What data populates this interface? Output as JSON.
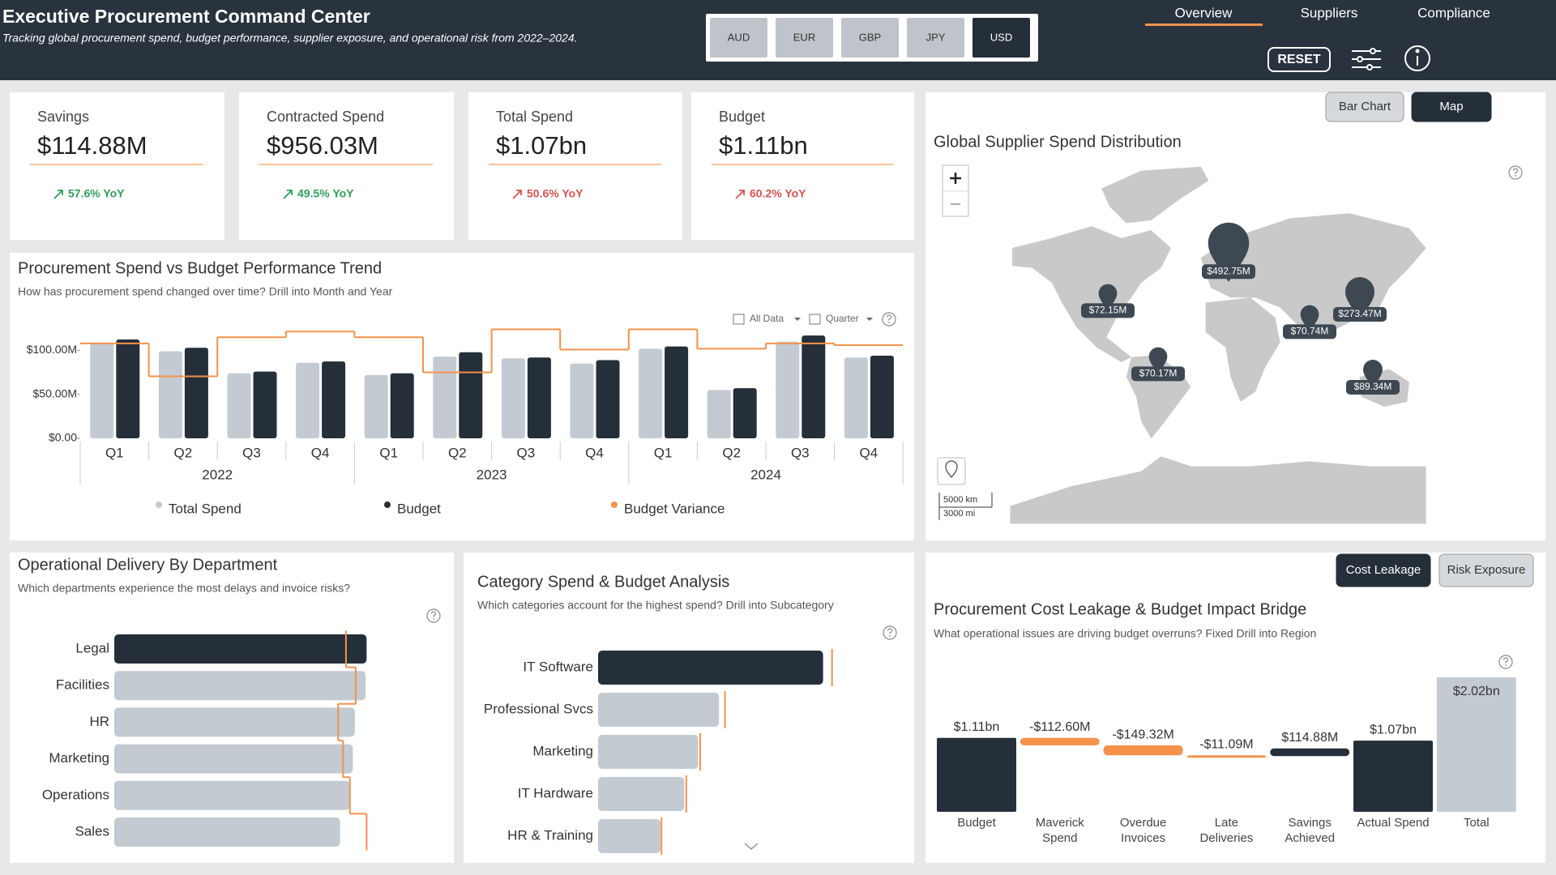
{
  "header": {
    "title": "Executive Procurement Command Center",
    "subtitle": "Tracking global procurement spend, budget performance, supplier exposure, and operational risk from 2022–2024.",
    "currencies": [
      "AUD",
      "EUR",
      "GBP",
      "JPY",
      "USD"
    ],
    "selected_currency": "USD",
    "nav": [
      "Overview",
      "Suppliers",
      "Compliance"
    ],
    "active_nav": "Overview",
    "reset": "RESET"
  },
  "kpis": [
    {
      "label": "Savings",
      "value": "$114.88M",
      "change": "57.6% YoY",
      "color": "#2e9e5b"
    },
    {
      "label": "Contracted Spend",
      "value": "$956.03M",
      "change": "49.5% YoY",
      "color": "#2e9e5b"
    },
    {
      "label": "Total Spend",
      "value": "$1.07bn",
      "change": "50.6% YoY",
      "color": "#d9534f"
    },
    {
      "label": "Budget",
      "value": "$1.11bn",
      "change": "60.2% YoY",
      "color": "#d9534f"
    }
  ],
  "chart_data": [
    {
      "type": "bar",
      "title": "Procurement Spend vs Budget Performance Trend",
      "subtitle": "How has procurement spend changed over time? Drill into Month and Year",
      "toolbar": [
        "All Data",
        "Quarter"
      ],
      "categories": [
        "Q1",
        "Q2",
        "Q3",
        "Q4",
        "Q1",
        "Q2",
        "Q3",
        "Q4",
        "Q1",
        "Q2",
        "Q3",
        "Q4"
      ],
      "x_groups": [
        "2022",
        "2023",
        "2024"
      ],
      "series": [
        {
          "name": "Total Spend",
          "color": "#c3cad2",
          "values": [
            109,
            99,
            74,
            86,
            72,
            93,
            91,
            85,
            102,
            55,
            110,
            92
          ]
        },
        {
          "name": "Budget",
          "color": "#252f3a",
          "values": [
            112.5,
            103,
            76,
            87.5,
            74,
            98,
            92,
            89,
            104.5,
            57,
            117,
            94
          ]
        },
        {
          "name": "Budget Variance",
          "type": "step",
          "color": "#f5924a",
          "values": [
            108,
            70.5,
            115,
            121.5,
            115,
            75,
            124,
            101,
            124,
            102,
            108,
            106
          ]
        }
      ],
      "ylim": [
        0,
        130
      ],
      "yticks": [
        {
          "value": 0,
          "label": "$0.00"
        },
        {
          "value": 50,
          "label": "$50.00M"
        },
        {
          "value": 100,
          "label": "$100.00M"
        }
      ],
      "legend": "bottom"
    },
    {
      "type": "map",
      "title": "Global Supplier Spend Distribution",
      "views": [
        "Bar Chart",
        "Map"
      ],
      "active_view": "Map",
      "values": [
        492.75,
        72.15,
        273.47,
        70.74,
        70.17,
        89.34
      ],
      "value_labels": [
        "$492.75M",
        "$72.15M",
        "$273.47M",
        "$70.74M",
        "$70.17M",
        "$89.34M"
      ],
      "color": "#3d4852",
      "scale_labels": [
        "5000 km",
        "3000 mi"
      ]
    },
    {
      "type": "hbar",
      "title": "Operational Delivery By Department",
      "subtitle": "Which departments experience the most delays and invoice risks?",
      "categories": [
        "Legal",
        "Facilities",
        "HR",
        "Marketing",
        "Operations",
        "Sales"
      ],
      "values": [
        257,
        256,
        245,
        243,
        240,
        230
      ],
      "colors": [
        "#252f3a",
        "#c3cad2",
        "#c3cad2",
        "#c3cad2",
        "#c3cad2",
        "#c3cad2"
      ],
      "markers": [
        236,
        246,
        228,
        233,
        240,
        257
      ],
      "marker_color": "#f5924a",
      "marker_style": "step",
      "xlim": [
        0,
        260
      ]
    },
    {
      "type": "hbar",
      "title": "Category Spend & Budget Analysis",
      "subtitle": "Which categories account for the highest spend? Drill into Subcategory",
      "categories": [
        "IT Software",
        "Professional Svcs",
        "Marketing",
        "IT Hardware",
        "HR & Training"
      ],
      "values": [
        227,
        122,
        101,
        87,
        63
      ],
      "colors": [
        "#252f3a",
        "#c3cad2",
        "#c3cad2",
        "#c3cad2",
        "#c3cad2"
      ],
      "markers": [
        236,
        128,
        103,
        89,
        64
      ],
      "marker_color": "#f5924a",
      "marker_style": "tick",
      "xlim": [
        0,
        260
      ]
    },
    {
      "type": "waterfall",
      "title": "Procurement Cost Leakage & Budget Impact Bridge",
      "subtitle": "What operational issues are driving budget overruns? Fixed Drill into Region",
      "views": [
        "Cost Leakage",
        "Risk Exposure"
      ],
      "active_view": "Cost Leakage",
      "categories": [
        "Budget",
        "Maverick Spend",
        "Overdue Invoices",
        "Late Deliveries",
        "Savings Achieved",
        "Actual Spend",
        "Total"
      ],
      "values": [
        1110,
        -112.6,
        -149.32,
        -11.09,
        114.88,
        1070,
        2020
      ],
      "value_labels": [
        "$1.11bn",
        "-$112.60M",
        "-$149.32M",
        "-$11.09M",
        "$114.88M",
        "$1.07bn",
        "$2.02bn"
      ],
      "measures": [
        "absolute",
        "relative",
        "relative",
        "relative",
        "relative",
        "absolute",
        "absolute"
      ],
      "colors": [
        "#252f3a",
        "#f5924a",
        "#f5924a",
        "#f5924a",
        "#252f3a",
        "#252f3a",
        "#c3cad2"
      ]
    }
  ]
}
